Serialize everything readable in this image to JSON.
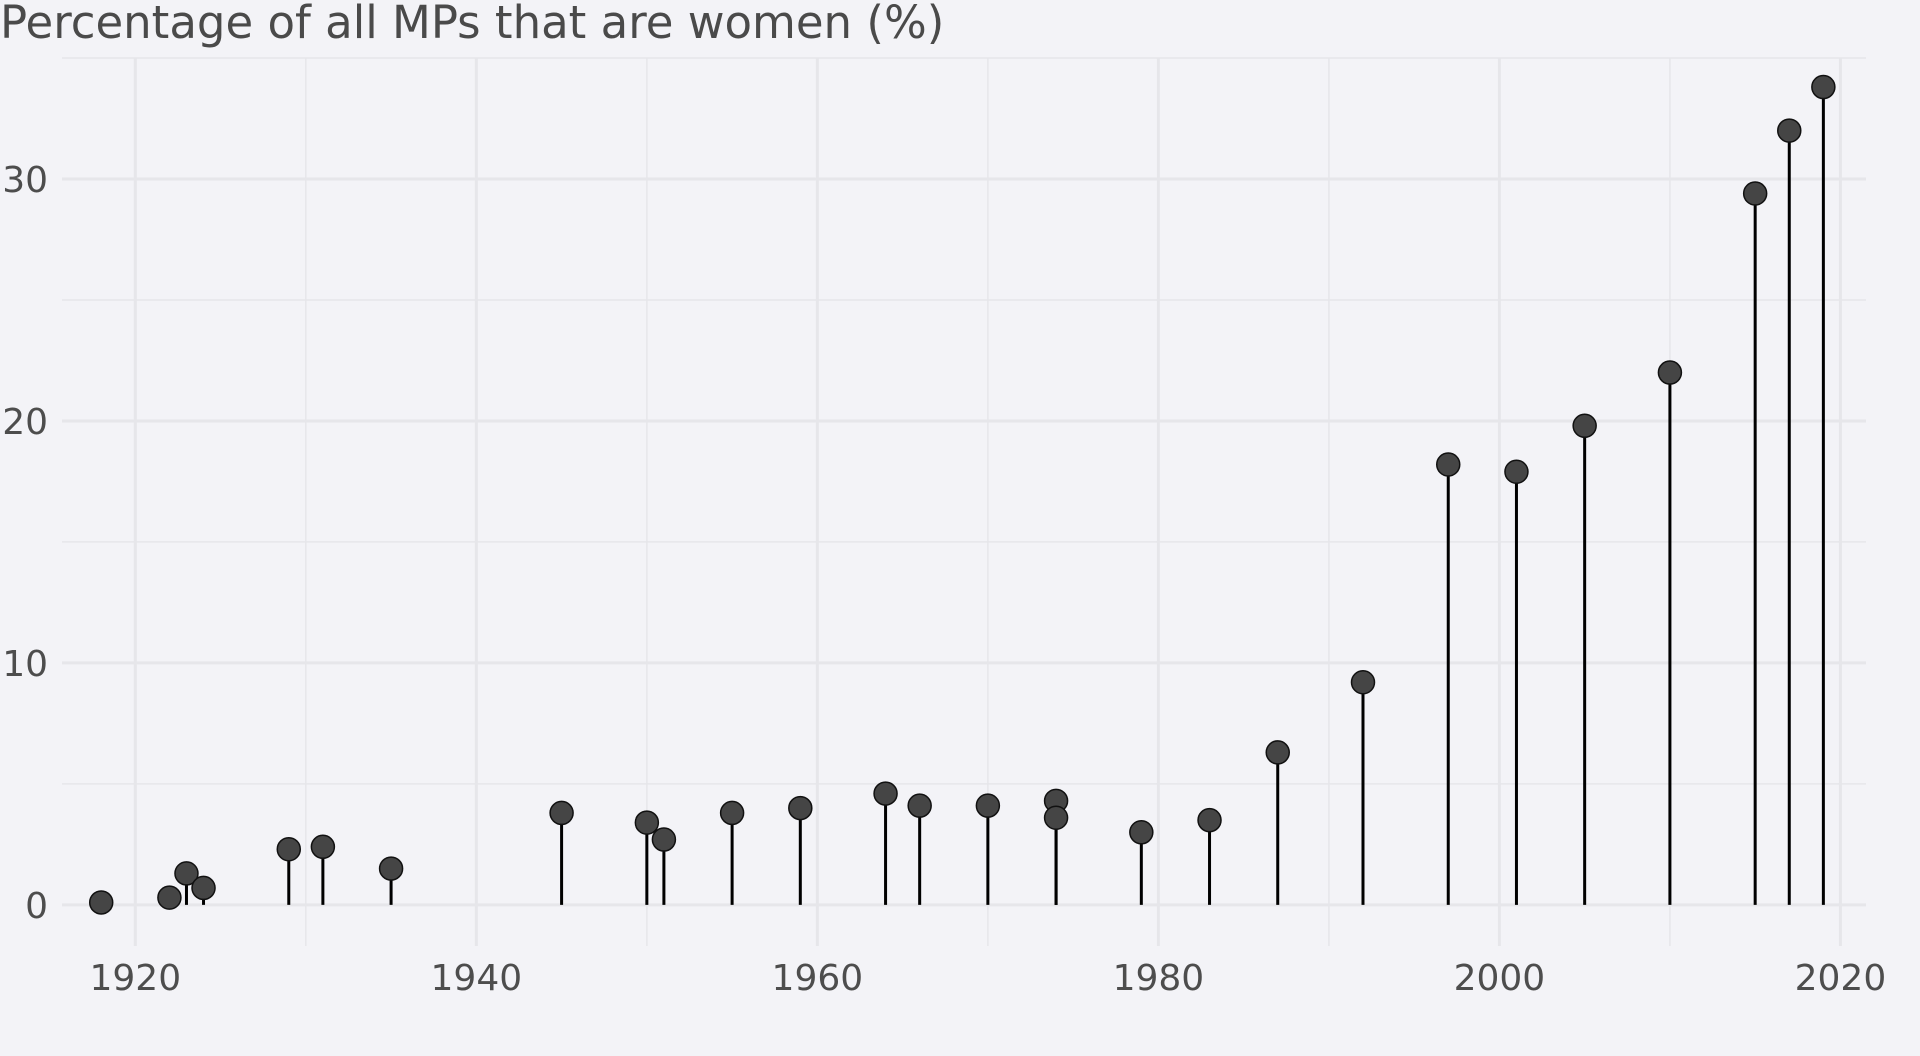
{
  "chart_data": {
    "type": "scatter",
    "style": "lollipop",
    "title": "Percentage of all MPs that are women (%)",
    "xlabel": "",
    "ylabel": "",
    "xlim": [
      1915.7,
      2021.5
    ],
    "ylim": [
      -1.7,
      35.0
    ],
    "x_ticks": [
      1920,
      1940,
      1960,
      1980,
      2000,
      2020
    ],
    "y_ticks": [
      0,
      10,
      20,
      30
    ],
    "grid": true,
    "legend": "none",
    "colors": {
      "background": "#f3f3f7",
      "grid": "#e6e6ea",
      "point": "#454545",
      "stem": "#000000"
    },
    "series": [
      {
        "x": [
          1918,
          1922,
          1923,
          1924,
          1929,
          1931,
          1935,
          1945,
          1950,
          1951,
          1955,
          1959,
          1964,
          1966,
          1970,
          1974,
          1974,
          1979,
          1983,
          1987,
          1992,
          1997,
          2001,
          2005,
          2010,
          2015,
          2017,
          2019
        ],
        "y": [
          0.1,
          0.3,
          1.3,
          0.7,
          2.3,
          2.4,
          1.5,
          3.8,
          3.4,
          2.7,
          3.8,
          4.0,
          4.6,
          4.1,
          4.1,
          4.3,
          3.6,
          3.0,
          3.5,
          6.3,
          9.2,
          18.2,
          17.9,
          19.8,
          22.0,
          29.4,
          32.0,
          33.8
        ]
      }
    ]
  }
}
